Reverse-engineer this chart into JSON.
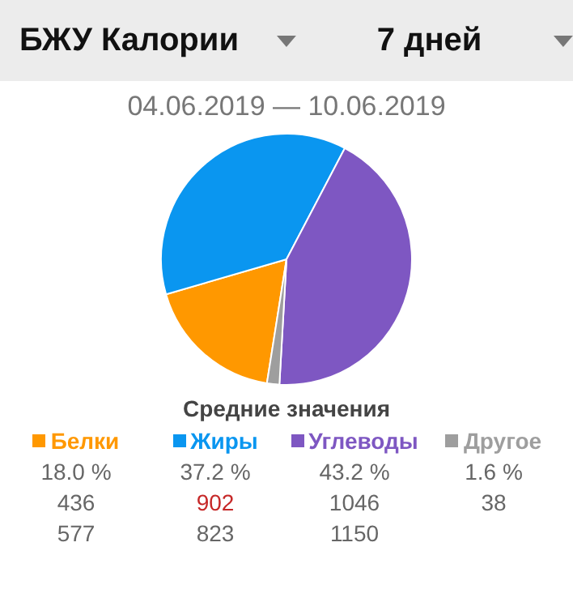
{
  "chart_data": {
    "type": "pie",
    "title": "БЖУ Калории",
    "subtitle": "04.06.2019 — 10.06.2019",
    "categories": [
      "Белки",
      "Жиры",
      "Углеводы",
      "Другое"
    ],
    "values": [
      18.0,
      37.2,
      43.2,
      1.6
    ],
    "colors": [
      "#ff9800",
      "#0a96f0",
      "#7e57c2",
      "#9e9e9e"
    ],
    "value_labels": [
      "18.0 %",
      "37.2 %",
      "43.2 %",
      "1.6 %"
    ],
    "annotations": [
      "7 дней",
      "Средние значения",
      "436",
      "902",
      "1046",
      "38",
      "577",
      "823",
      "1150"
    ],
    "legend": "bottom"
  }
}
